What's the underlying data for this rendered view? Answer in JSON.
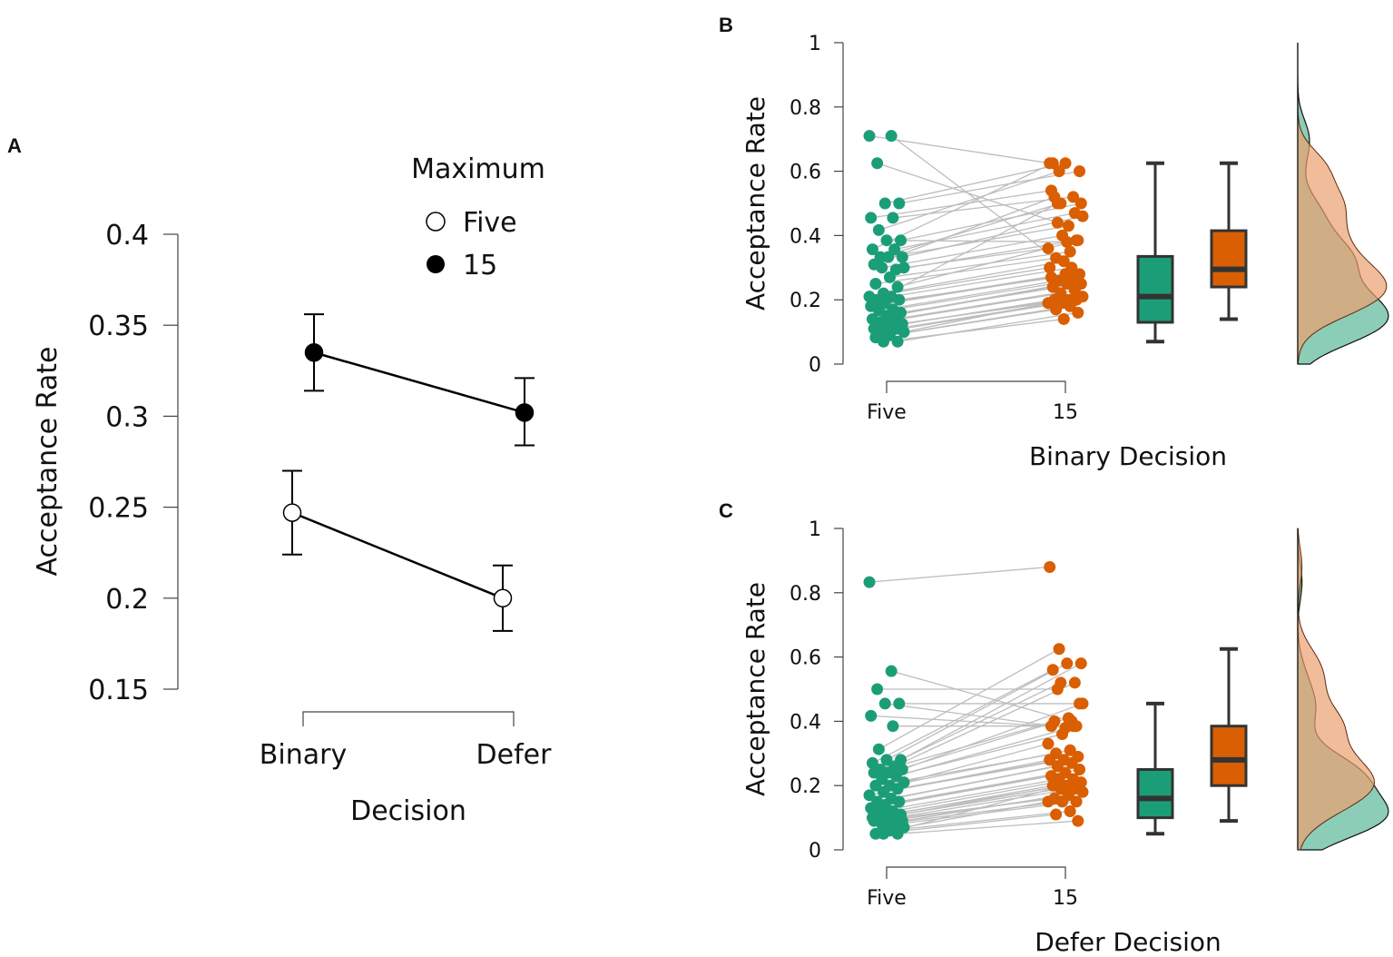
{
  "chart_data": [
    {
      "panel": "A",
      "type": "line",
      "xlabel": "Decision",
      "ylabel": "Acceptance Rate",
      "categories": [
        "Binary",
        "Defer"
      ],
      "yticks": [
        "0.15",
        "0.2",
        "0.25",
        "0.3",
        "0.35",
        "0.4"
      ],
      "ylim": [
        0.15,
        0.4
      ],
      "legend": {
        "title": "Maximum",
        "placement": "top-right"
      },
      "series": [
        {
          "name": "Five",
          "marker": "open-circle",
          "values": [
            0.247,
            0.2
          ],
          "ci_low": [
            0.224,
            0.182
          ],
          "ci_high": [
            0.27,
            0.218
          ]
        },
        {
          "name": "15",
          "marker": "filled-circle",
          "values": [
            0.335,
            0.302
          ],
          "ci_low": [
            0.314,
            0.284
          ],
          "ci_high": [
            0.356,
            0.321
          ]
        }
      ]
    },
    {
      "panel": "B",
      "type": "scatter",
      "xlabel": "Binary Decision",
      "ylabel": "Acceptance Rate",
      "categories": [
        "Five",
        "15"
      ],
      "yticks": [
        "0",
        "0.2",
        "0.4",
        "0.6",
        "0.8",
        "1"
      ],
      "ylim": [
        0,
        1
      ],
      "colors": {
        "Five": "#1b9e77",
        "15": "#d95f02",
        "Five_density": "#8ccdb8",
        "15_density": "#eba06f"
      },
      "five": [
        0.71,
        0.71,
        0.625,
        0.5,
        0.5,
        0.455,
        0.455,
        0.417,
        0.385,
        0.385,
        0.357,
        0.357,
        0.333,
        0.333,
        0.333,
        0.31,
        0.294,
        0.3,
        0.3,
        0.27,
        0.25,
        0.24,
        0.22,
        0.21,
        0.21,
        0.2,
        0.2,
        0.19,
        0.18,
        0.17,
        0.167,
        0.16,
        0.15,
        0.14,
        0.14,
        0.13,
        0.125,
        0.12,
        0.11,
        0.11,
        0.1,
        0.1,
        0.09,
        0.083,
        0.07,
        0.07
      ],
      "fifteen": [
        0.625,
        0.29,
        0.44,
        0.6,
        0.625,
        0.54,
        0.52,
        0.6,
        0.5,
        0.38,
        0.625,
        0.47,
        0.5,
        0.46,
        0.43,
        0.52,
        0.385,
        0.4,
        0.36,
        0.35,
        0.33,
        0.385,
        0.32,
        0.3,
        0.3,
        0.5,
        0.28,
        0.28,
        0.27,
        0.26,
        0.26,
        0.25,
        0.25,
        0.24,
        0.23,
        0.22,
        0.21,
        0.2,
        0.2,
        0.2,
        0.19,
        0.19,
        0.18,
        0.17,
        0.16,
        0.14
      ],
      "boxplot": {
        "Five": {
          "min": 0.07,
          "q1": 0.13,
          "median": 0.21,
          "q3": 0.335,
          "max": 0.625
        },
        "15": {
          "min": 0.14,
          "q1": 0.24,
          "median": 0.295,
          "q3": 0.415,
          "max": 0.625
        }
      }
    },
    {
      "panel": "C",
      "type": "scatter",
      "xlabel": "Defer Decision",
      "ylabel": "Acceptance Rate",
      "categories": [
        "Five",
        "15"
      ],
      "yticks": [
        "0",
        "0.2",
        "0.4",
        "0.6",
        "0.8",
        "1"
      ],
      "ylim": [
        0,
        1
      ],
      "colors": {
        "Five": "#1b9e77",
        "15": "#d95f02",
        "Five_density": "#8ccdb8",
        "15_density": "#eba06f"
      },
      "five": [
        0.833,
        0.556,
        0.5,
        0.455,
        0.455,
        0.417,
        0.385,
        0.313,
        0.28,
        0.28,
        0.27,
        0.26,
        0.25,
        0.25,
        0.24,
        0.24,
        0.23,
        0.22,
        0.21,
        0.2,
        0.2,
        0.19,
        0.18,
        0.17,
        0.16,
        0.15,
        0.15,
        0.14,
        0.13,
        0.12,
        0.12,
        0.11,
        0.11,
        0.1,
        0.1,
        0.1,
        0.09,
        0.09,
        0.09,
        0.08,
        0.08,
        0.07,
        0.06,
        0.05,
        0.05,
        0.05
      ],
      "fifteen": [
        0.88,
        0.4,
        0.5,
        0.455,
        0.38,
        0.385,
        0.385,
        0.625,
        0.58,
        0.58,
        0.56,
        0.52,
        0.52,
        0.455,
        0.41,
        0.4,
        0.385,
        0.36,
        0.33,
        0.31,
        0.3,
        0.29,
        0.28,
        0.28,
        0.27,
        0.26,
        0.25,
        0.24,
        0.23,
        0.22,
        0.22,
        0.21,
        0.2,
        0.2,
        0.19,
        0.19,
        0.18,
        0.17,
        0.16,
        0.15,
        0.15,
        0.15,
        0.12,
        0.11,
        0.09,
        0.2
      ],
      "boxplot": {
        "Five": {
          "min": 0.05,
          "q1": 0.1,
          "median": 0.16,
          "q3": 0.25,
          "max": 0.455
        },
        "15": {
          "min": 0.09,
          "q1": 0.2,
          "median": 0.28,
          "q3": 0.385,
          "max": 0.625
        }
      }
    }
  ],
  "labels": {
    "A": "A",
    "B": "B",
    "C": "C"
  }
}
